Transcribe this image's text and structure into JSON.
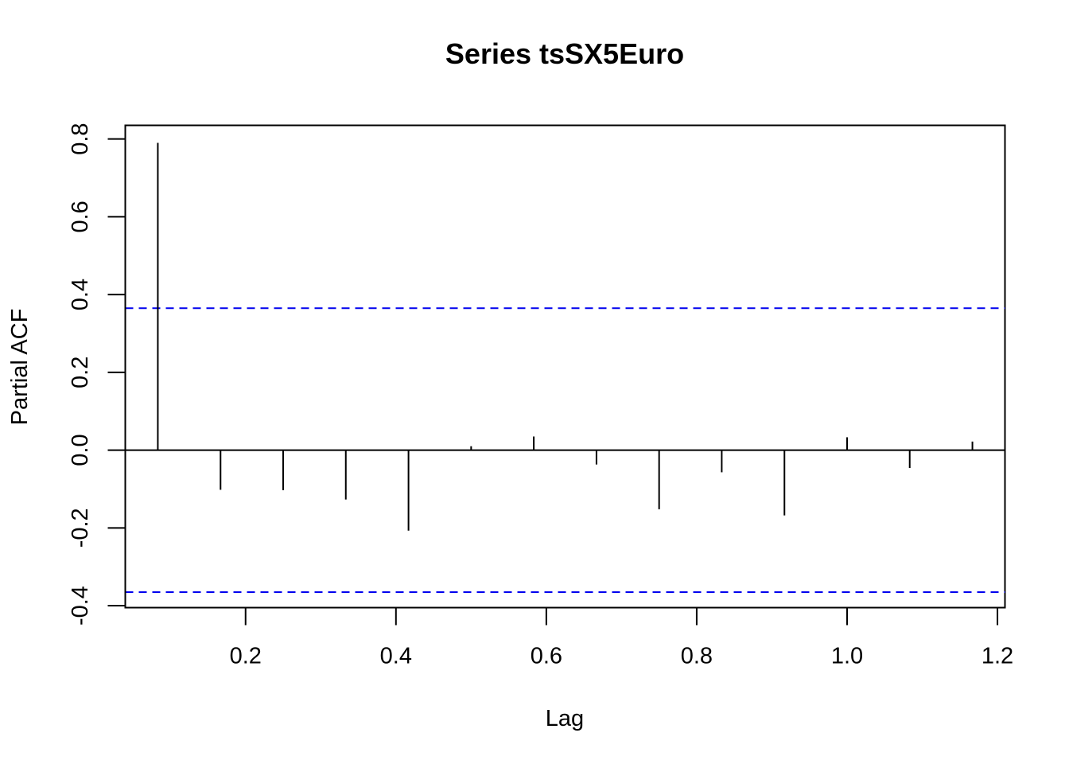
{
  "chart_data": {
    "type": "bar",
    "subtype": "pacf-lollipop",
    "title": "Series  tsSX5Euro",
    "xlabel": "Lag",
    "ylabel": "Partial ACF",
    "xlim": [
      0.04,
      1.21
    ],
    "ylim": [
      -0.405,
      0.835
    ],
    "x_ticks": [
      0.2,
      0.4,
      0.6,
      0.8,
      1.0,
      1.2
    ],
    "x_tick_labels": [
      "0.2",
      "0.4",
      "0.6",
      "0.8",
      "1.0",
      "1.2"
    ],
    "y_ticks": [
      -0.4,
      -0.2,
      0.0,
      0.2,
      0.4,
      0.6,
      0.8
    ],
    "y_tick_labels": [
      "-0.4",
      "-0.2",
      "0.0",
      "0.2",
      "0.4",
      "0.6",
      "0.8"
    ],
    "grid": false,
    "zero_line": true,
    "confidence_band": {
      "upper": 0.365,
      "lower": -0.365,
      "color": "#0000ee",
      "style": "dashed"
    },
    "bar_color": "#000000",
    "lags": [
      0.0833,
      0.1667,
      0.25,
      0.3333,
      0.4167,
      0.5,
      0.5833,
      0.6667,
      0.75,
      0.8333,
      0.9167,
      1.0,
      1.0833,
      1.1667
    ],
    "values": [
      0.79,
      -0.102,
      -0.103,
      -0.127,
      -0.207,
      0.01,
      0.035,
      -0.037,
      -0.152,
      -0.057,
      -0.168,
      0.033,
      -0.046,
      0.022
    ]
  }
}
